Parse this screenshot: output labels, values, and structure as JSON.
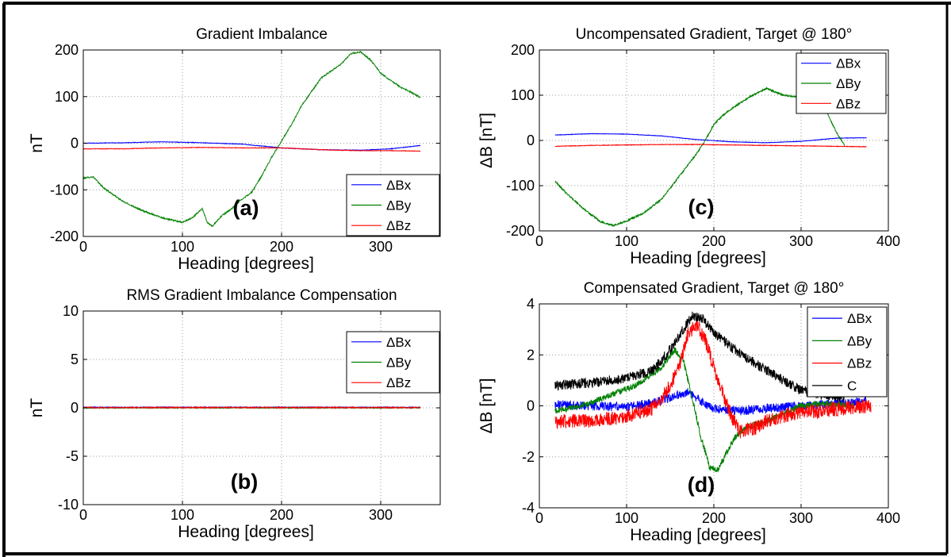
{
  "chart_data": [
    {
      "id": "a",
      "type": "line",
      "title": "Gradient Imbalance",
      "xlabel": "Heading [degrees]",
      "ylabel": "nT",
      "panel_label": "(a)",
      "xlim": [
        0,
        360
      ],
      "ylim": [
        -200,
        200
      ],
      "xticks": [
        0,
        100,
        200,
        300
      ],
      "yticks": [
        -200,
        -100,
        0,
        100,
        200
      ],
      "grid": true,
      "legend": "bottom-right",
      "series": [
        {
          "name": "ΔBx",
          "color": "#0000ff",
          "noise": 0.6,
          "points": [
            [
              0,
              0
            ],
            [
              40,
              1
            ],
            [
              80,
              3
            ],
            [
              120,
              1
            ],
            [
              160,
              -2
            ],
            [
              200,
              -10
            ],
            [
              240,
              -14
            ],
            [
              280,
              -15
            ],
            [
              310,
              -12
            ],
            [
              340,
              -5
            ]
          ]
        },
        {
          "name": "ΔBy",
          "color": "#008000",
          "noise": 1.5,
          "points": [
            [
              0,
              -75
            ],
            [
              10,
              -72
            ],
            [
              20,
              -95
            ],
            [
              40,
              -125
            ],
            [
              60,
              -145
            ],
            [
              80,
              -160
            ],
            [
              100,
              -170
            ],
            [
              110,
              -160
            ],
            [
              120,
              -140
            ],
            [
              125,
              -170
            ],
            [
              130,
              -178
            ],
            [
              140,
              -155
            ],
            [
              150,
              -140
            ],
            [
              160,
              -120
            ],
            [
              170,
              -105
            ],
            [
              180,
              -70
            ],
            [
              190,
              -30
            ],
            [
              200,
              5
            ],
            [
              210,
              40
            ],
            [
              220,
              80
            ],
            [
              240,
              140
            ],
            [
              260,
              170
            ],
            [
              270,
              192
            ],
            [
              280,
              196
            ],
            [
              290,
              178
            ],
            [
              300,
              150
            ],
            [
              320,
              120
            ],
            [
              330,
              110
            ],
            [
              340,
              98
            ]
          ]
        },
        {
          "name": "ΔBz",
          "color": "#ff0000",
          "noise": 0.6,
          "points": [
            [
              0,
              -12
            ],
            [
              40,
              -12
            ],
            [
              80,
              -10
            ],
            [
              120,
              -9
            ],
            [
              160,
              -10
            ],
            [
              200,
              -10
            ],
            [
              240,
              -14
            ],
            [
              280,
              -16
            ],
            [
              310,
              -16
            ],
            [
              340,
              -17
            ]
          ]
        }
      ]
    },
    {
      "id": "b",
      "type": "line",
      "title": "RMS Gradient Imbalance Compensation",
      "xlabel": "Heading [degrees]",
      "ylabel": "nT",
      "panel_label": "(b)",
      "xlim": [
        0,
        360
      ],
      "ylim": [
        -10,
        10
      ],
      "xticks": [
        0,
        100,
        200,
        300
      ],
      "yticks": [
        -10,
        -5,
        0,
        5,
        10
      ],
      "grid": true,
      "legend": "top-right",
      "series": [
        {
          "name": "ΔBx",
          "color": "#0000ff",
          "noise": 0.05,
          "points": [
            [
              0,
              0.05
            ],
            [
              340,
              0.05
            ]
          ]
        },
        {
          "name": "ΔBy",
          "color": "#008000",
          "noise": 0.05,
          "points": [
            [
              0,
              0.0
            ],
            [
              340,
              0.0
            ]
          ]
        },
        {
          "name": "ΔBz",
          "color": "#ff0000",
          "noise": 0.06,
          "points": [
            [
              0,
              0.03
            ],
            [
              340,
              0.03
            ]
          ]
        }
      ]
    },
    {
      "id": "c",
      "type": "line",
      "title": "Uncompensated Gradient, Target @ 180°",
      "xlabel": "Heading [degrees]",
      "ylabel": "ΔB [nT]",
      "panel_label": "(c)",
      "xlim": [
        0,
        400
      ],
      "ylim": [
        -200,
        200
      ],
      "xticks": [
        0,
        100,
        200,
        300,
        400
      ],
      "yticks": [
        -200,
        -100,
        0,
        100,
        200
      ],
      "grid": true,
      "legend": "top-right",
      "series": [
        {
          "name": "ΔBx",
          "color": "#0000ff",
          "noise": 0.5,
          "points": [
            [
              18,
              12
            ],
            [
              60,
              15
            ],
            [
              100,
              14
            ],
            [
              140,
              10
            ],
            [
              180,
              2
            ],
            [
              220,
              -3
            ],
            [
              260,
              -5
            ],
            [
              300,
              -2
            ],
            [
              340,
              5
            ],
            [
              375,
              6
            ]
          ]
        },
        {
          "name": "ΔBy",
          "color": "#008000",
          "noise": 1.8,
          "points": [
            [
              18,
              -90
            ],
            [
              30,
              -115
            ],
            [
              50,
              -150
            ],
            [
              70,
              -180
            ],
            [
              85,
              -188
            ],
            [
              100,
              -178
            ],
            [
              120,
              -160
            ],
            [
              140,
              -130
            ],
            [
              160,
              -80
            ],
            [
              170,
              -55
            ],
            [
              180,
              -30
            ],
            [
              190,
              0
            ],
            [
              200,
              35
            ],
            [
              210,
              55
            ],
            [
              220,
              70
            ],
            [
              240,
              95
            ],
            [
              260,
              115
            ],
            [
              280,
              100
            ],
            [
              300,
              95
            ],
            [
              320,
              90
            ],
            [
              330,
              60
            ],
            [
              340,
              20
            ],
            [
              350,
              -12
            ]
          ]
        },
        {
          "name": "ΔBz",
          "color": "#ff0000",
          "noise": 0.6,
          "points": [
            [
              18,
              -13
            ],
            [
              60,
              -11
            ],
            [
              100,
              -10
            ],
            [
              140,
              -9
            ],
            [
              180,
              -9
            ],
            [
              220,
              -10
            ],
            [
              260,
              -11
            ],
            [
              300,
              -12
            ],
            [
              340,
              -13
            ],
            [
              375,
              -14
            ]
          ]
        }
      ]
    },
    {
      "id": "d",
      "type": "line",
      "title": "Compensated Gradient, Target @ 180°",
      "xlabel": "Heading [degrees]",
      "ylabel": "ΔB [nT]",
      "panel_label": "(d)",
      "xlim": [
        0,
        400
      ],
      "ylim": [
        -4,
        4
      ],
      "xticks": [
        0,
        100,
        200,
        300,
        400
      ],
      "yticks": [
        -4,
        -2,
        0,
        2,
        4
      ],
      "grid": true,
      "legend": "top-right",
      "series": [
        {
          "name": "ΔBx",
          "color": "#0000ff",
          "noise": 0.18,
          "points": [
            [
              18,
              0.05
            ],
            [
              60,
              0.0
            ],
            [
              100,
              -0.05
            ],
            [
              130,
              0.1
            ],
            [
              155,
              0.4
            ],
            [
              170,
              0.55
            ],
            [
              185,
              0.2
            ],
            [
              200,
              -0.1
            ],
            [
              230,
              -0.2
            ],
            [
              260,
              -0.1
            ],
            [
              300,
              0.0
            ],
            [
              340,
              0.1
            ],
            [
              375,
              0.2
            ]
          ]
        },
        {
          "name": "ΔBy",
          "color": "#008000",
          "noise": 0.12,
          "points": [
            [
              18,
              -0.2
            ],
            [
              50,
              0.0
            ],
            [
              80,
              0.4
            ],
            [
              110,
              0.8
            ],
            [
              140,
              1.5
            ],
            [
              155,
              2.2
            ],
            [
              165,
              1.8
            ],
            [
              175,
              0.3
            ],
            [
              185,
              -1.2
            ],
            [
              195,
              -2.4
            ],
            [
              205,
              -2.5
            ],
            [
              215,
              -1.8
            ],
            [
              225,
              -1.2
            ],
            [
              240,
              -0.8
            ],
            [
              260,
              -0.6
            ],
            [
              280,
              -0.3
            ],
            [
              300,
              0.0
            ],
            [
              330,
              0.1
            ],
            [
              360,
              0.0
            ]
          ]
        },
        {
          "name": "ΔBz",
          "color": "#ff0000",
          "noise": 0.28,
          "points": [
            [
              18,
              -0.6
            ],
            [
              60,
              -0.6
            ],
            [
              100,
              -0.4
            ],
            [
              130,
              -0.1
            ],
            [
              145,
              0.5
            ],
            [
              160,
              1.5
            ],
            [
              170,
              2.8
            ],
            [
              180,
              3.2
            ],
            [
              190,
              2.6
            ],
            [
              200,
              1.5
            ],
            [
              210,
              0.5
            ],
            [
              220,
              -0.4
            ],
            [
              230,
              -1.0
            ],
            [
              245,
              -0.9
            ],
            [
              260,
              -0.6
            ],
            [
              290,
              -0.3
            ],
            [
              320,
              -0.2
            ],
            [
              360,
              -0.05
            ],
            [
              380,
              0.0
            ]
          ]
        },
        {
          "name": "C",
          "color": "#000000",
          "noise": 0.2,
          "points": [
            [
              18,
              0.8
            ],
            [
              60,
              0.9
            ],
            [
              100,
              1.1
            ],
            [
              130,
              1.4
            ],
            [
              150,
              2.2
            ],
            [
              165,
              3.0
            ],
            [
              175,
              3.5
            ],
            [
              185,
              3.5
            ],
            [
              200,
              2.9
            ],
            [
              220,
              2.3
            ],
            [
              250,
              1.6
            ],
            [
              280,
              1.0
            ],
            [
              300,
              0.6
            ],
            [
              330,
              0.4
            ],
            [
              350,
              0.3
            ]
          ]
        }
      ]
    }
  ]
}
